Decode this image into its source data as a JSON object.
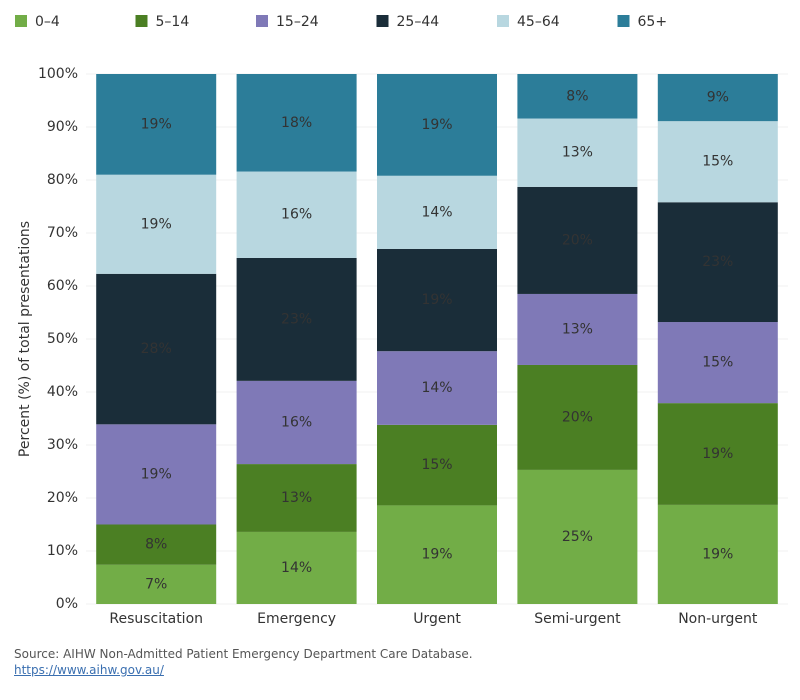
{
  "chart_data": {
    "type": "stacked-bar",
    "y_label": "Percent (%) of total presentations",
    "categories": [
      "Resuscitation",
      "Emergency",
      "Urgent",
      "Semi-urgent",
      "Non-urgent"
    ],
    "series": [
      {
        "name": "0–4",
        "color": "#72ad47",
        "label_color": "#222",
        "values": [
          7.4,
          13.6,
          18.6,
          25.3,
          18.7
        ],
        "value_labels": [
          "7%",
          "14%",
          "19%",
          "25%",
          "19%"
        ]
      },
      {
        "name": "5–14",
        "color": "#4b7f23",
        "label_color": "#fff",
        "values": [
          7.6,
          12.8,
          15.2,
          19.8,
          19.2
        ],
        "value_labels": [
          "8%",
          "13%",
          "15%",
          "20%",
          "19%"
        ]
      },
      {
        "name": "15–24",
        "color": "#7f79b7",
        "label_color": "#fff",
        "values": [
          18.9,
          15.7,
          13.9,
          13.4,
          15.3
        ],
        "value_labels": [
          "19%",
          "16%",
          "14%",
          "13%",
          "15%"
        ]
      },
      {
        "name": "25–44",
        "color": "#1a2d39",
        "label_color": "#fff",
        "values": [
          28.4,
          23.2,
          19.3,
          20.2,
          22.6
        ],
        "value_labels": [
          "28%",
          "23%",
          "19%",
          "20%",
          "23%"
        ]
      },
      {
        "name": "45–64",
        "color": "#b8d7e0",
        "label_color": "#222",
        "values": [
          18.7,
          16.3,
          13.8,
          12.9,
          15.3
        ],
        "value_labels": [
          "19%",
          "16%",
          "14%",
          "13%",
          "15%"
        ]
      },
      {
        "name": "65+",
        "color": "#2c7d99",
        "label_color": "#fff",
        "values": [
          19.0,
          18.4,
          19.2,
          8.4,
          8.9
        ],
        "value_labels": [
          "19%",
          "18%",
          "19%",
          "8%",
          "9%"
        ]
      }
    ],
    "ylim": [
      0,
      100
    ],
    "yticks": [
      {
        "value": 0,
        "label": "0%"
      },
      {
        "value": 10,
        "label": "10%"
      },
      {
        "value": 20,
        "label": "20%"
      },
      {
        "value": 30,
        "label": "30%"
      },
      {
        "value": 40,
        "label": "40%"
      },
      {
        "value": 50,
        "label": "50%"
      },
      {
        "value": 60,
        "label": "60%"
      },
      {
        "value": 70,
        "label": "70%"
      },
      {
        "value": 80,
        "label": "80%"
      },
      {
        "value": 90,
        "label": "90%"
      },
      {
        "value": 100,
        "label": "100%"
      }
    ],
    "grid": true
  },
  "footer": {
    "source": "Source: AIHW Non-Admitted Patient Emergency Department Care Database.",
    "link": "https://www.aihw.gov.au/"
  }
}
